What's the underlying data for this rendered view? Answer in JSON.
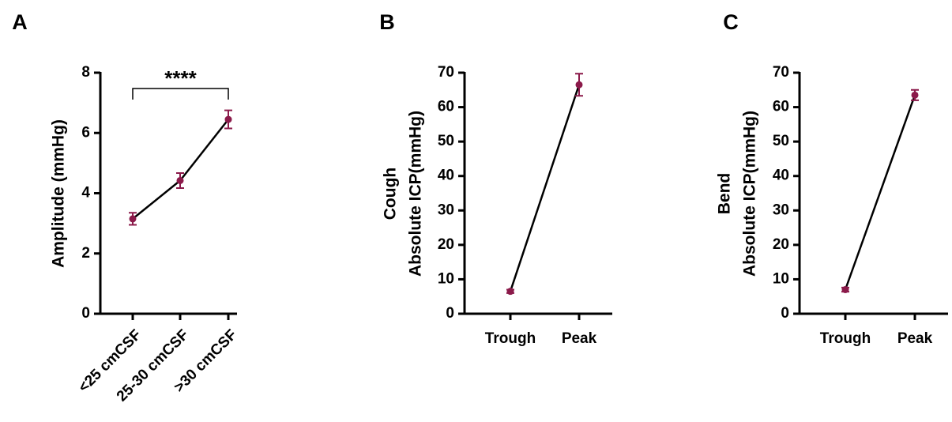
{
  "chart_data": [
    {
      "type": "line",
      "panel": "A",
      "ylabel": "Amplitude (mmHg)",
      "categories": [
        "<25 cmCSF",
        "25-30 cmCSF",
        ">30 cmCSF"
      ],
      "values": [
        3.15,
        4.42,
        6.45
      ],
      "errors": [
        0.2,
        0.25,
        0.3
      ],
      "color": "#8b1a4a",
      "line_color": "#000000",
      "ylim": [
        0,
        8
      ],
      "yticks": [
        0,
        2,
        4,
        6,
        8
      ],
      "annotation": "****"
    },
    {
      "type": "line",
      "panel": "B",
      "ylabel": [
        "Cough",
        "Absolute ICP(mmHg)"
      ],
      "categories": [
        "Trough",
        "Peak"
      ],
      "values": [
        6.5,
        66.5
      ],
      "errors": [
        0.5,
        3.2
      ],
      "color": "#8b1a4a",
      "line_color": "#000000",
      "ylim": [
        0,
        70
      ],
      "yticks": [
        0,
        10,
        20,
        30,
        40,
        50,
        60,
        70
      ]
    },
    {
      "type": "line",
      "panel": "C",
      "ylabel": [
        "Bend",
        "Absolute ICP(mmHg)"
      ],
      "categories": [
        "Trough",
        "Peak"
      ],
      "values": [
        7,
        63.5
      ],
      "errors": [
        0.6,
        1.5
      ],
      "color": "#8b1a4a",
      "line_color": "#000000",
      "ylim": [
        0,
        70
      ],
      "yticks": [
        0,
        10,
        20,
        30,
        40,
        50,
        60,
        70
      ]
    }
  ]
}
